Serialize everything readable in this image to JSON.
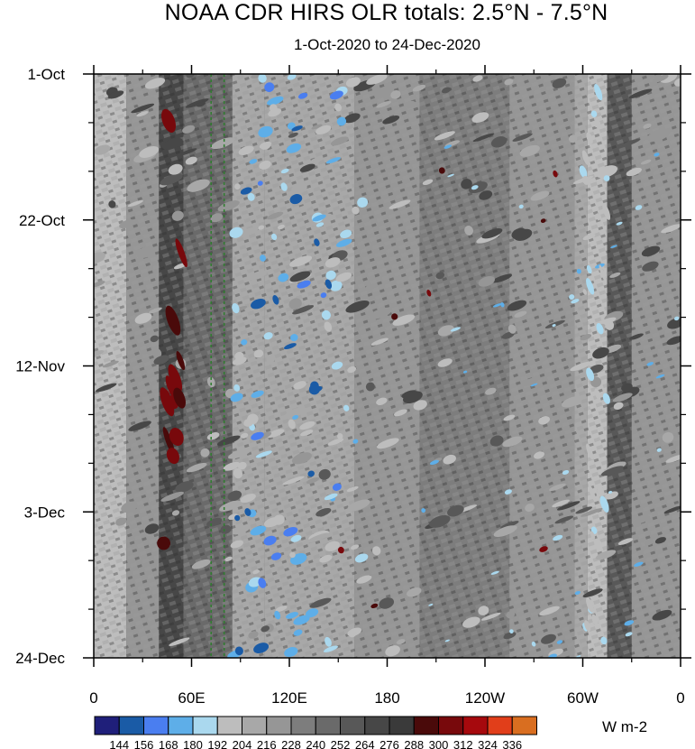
{
  "chart_data": {
    "type": "heatmap",
    "title": "NOAA CDR HIRS OLR totals: 2.5°N - 7.5°N",
    "subtitle": "1-Oct-2020 to 24-Dec-2020",
    "x_tick_labels": [
      "0",
      "60E",
      "120E",
      "180",
      "120W",
      "60W",
      "0"
    ],
    "x_tick_values_deg": [
      0,
      60,
      120,
      180,
      240,
      300,
      360
    ],
    "x_range_deg": [
      0,
      360
    ],
    "y_tick_labels": [
      "1-Oct",
      "22-Oct",
      "12-Nov",
      "3-Dec",
      "24-Dec"
    ],
    "y_range": [
      "1-Oct-2020",
      "24-Dec-2020"
    ],
    "y_direction": "time increases downward",
    "colorbar": {
      "units": "W m-2",
      "levels": [
        144,
        156,
        168,
        180,
        192,
        204,
        216,
        228,
        240,
        252,
        264,
        276,
        288,
        300,
        312,
        324,
        336
      ],
      "colors": [
        "#1f1f7a",
        "#1a5ba6",
        "#4a7ef0",
        "#5eaee8",
        "#aad8ee",
        "#bdbdbd",
        "#a8a8a8",
        "#969696",
        "#7d7d7d",
        "#6a6a6a",
        "#585858",
        "#474747",
        "#3a3a3a",
        "#4a0a0a",
        "#78090c",
        "#a6090d",
        "#e13e1a",
        "#d96e20"
      ]
    },
    "reference_lines": {
      "style": "dashed",
      "color": "#2e7d2e",
      "longitudes_deg": [
        72,
        80
      ]
    },
    "field_summary": {
      "background_range_wm2": [
        216,
        288
      ],
      "convective_low_olr_band_deg": [
        85,
        160
      ],
      "high_olr_band_deg": [
        40,
        55
      ],
      "bright_high_olr_band_deg": [
        300,
        315
      ],
      "min_wm2": 144,
      "max_wm2": 324
    }
  }
}
